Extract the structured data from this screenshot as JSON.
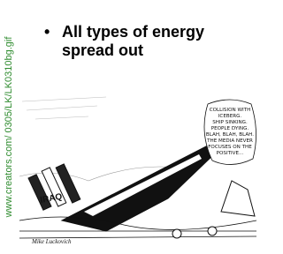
{
  "sidebar": {
    "url": "www.creators.com/ 0305/LK/LK0310bg.gif"
  },
  "slide": {
    "bullet": "All types of energy spread out"
  },
  "cartoon": {
    "caption_lines": [
      "COLLISION WITH",
      "ICEBERG.",
      "SHIP SINKING.",
      "PEOPLE DYING.",
      "BLAH, BLAH, BLAH.",
      "THE MEDIA NEVER",
      "FOCUSES ON THE",
      "POSITIVE..."
    ],
    "ship_label": "IRAQ",
    "signature": "Mike Luckovich"
  }
}
